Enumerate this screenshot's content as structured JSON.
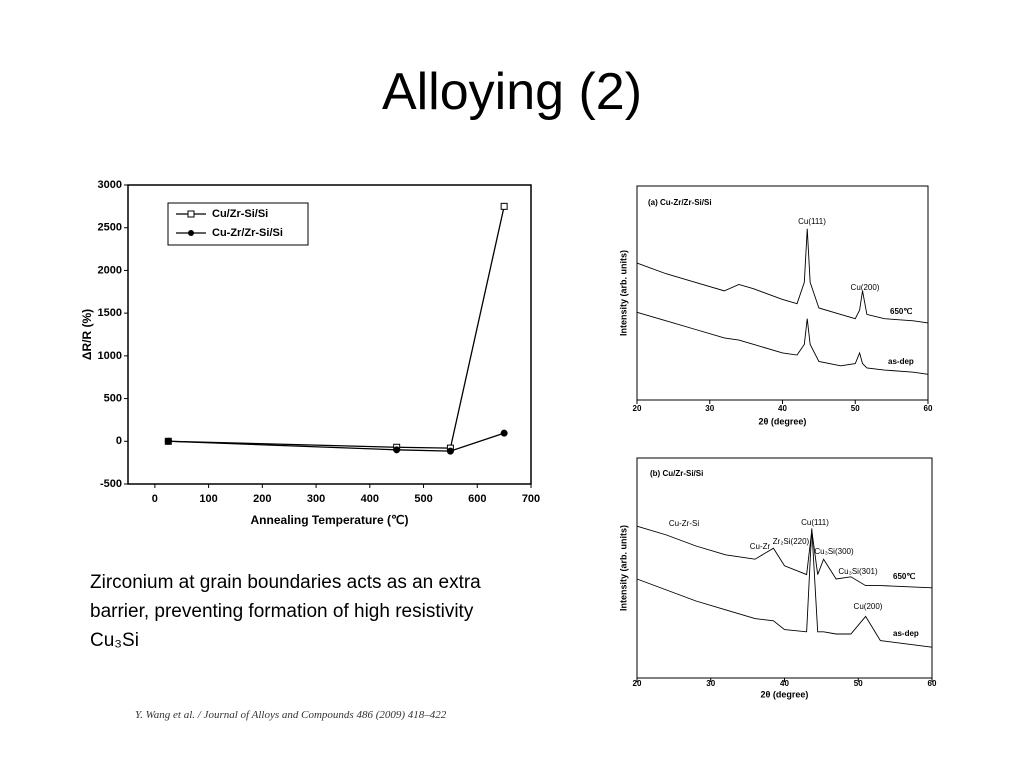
{
  "title": "Alloying (2)",
  "body_text": "Zirconium at grain boundaries acts as an extra barrier, preventing formation of high resistivity Cu₃Si",
  "citation": "Y. Wang et al. / Journal of Alloys and Compounds 486 (2009) 418–422",
  "chart_data": [
    {
      "type": "line",
      "xlabel": "Annealing Temperature (℃)",
      "ylabel": "ΔR/R (%)",
      "x": [
        25,
        450,
        550,
        650
      ],
      "series": [
        {
          "name": "Cu/Zr-Si/Si",
          "color": "#000000",
          "marker": "square-open",
          "values": [
            0,
            -70,
            -80,
            2750
          ]
        },
        {
          "name": "Cu-Zr/Zr-Si/Si",
          "color": "#000000",
          "marker": "circle",
          "values": [
            0,
            -100,
            -115,
            95
          ]
        }
      ],
      "xlim": [
        -50,
        700
      ],
      "xticks": [
        0,
        100,
        200,
        300,
        400,
        500,
        600,
        700
      ],
      "ylim": [
        -500,
        3000
      ],
      "yticks": [
        -500,
        0,
        500,
        1000,
        1500,
        2000,
        2500,
        3000
      ],
      "legend": "upper left"
    },
    {
      "type": "line",
      "title": "(a) Cu-Zr/Zr-Si/Si",
      "xlabel": "2θ (degree)",
      "ylabel": "Intensity (arb. units)",
      "x": [
        20,
        24,
        28,
        32,
        34,
        36,
        40,
        42,
        43,
        43.4,
        43.8,
        45,
        48,
        50,
        50.6,
        51,
        51.6,
        54,
        58,
        60
      ],
      "series": [
        {
          "name": "650℃",
          "color": "#000000",
          "values": [
            64,
            59,
            55,
            51,
            54,
            52,
            47,
            45,
            55,
            80,
            55,
            43,
            40,
            38,
            42,
            51,
            40,
            38,
            37,
            36
          ]
        },
        {
          "name": "as-dep",
          "color": "#000000",
          "values": [
            41,
            37,
            33,
            29,
            28,
            26,
            22,
            21,
            26,
            38,
            26,
            18,
            16,
            17,
            22,
            17,
            15,
            14,
            13,
            12
          ]
        }
      ],
      "xlim": [
        20,
        60
      ],
      "xticks": [
        20,
        30,
        40,
        50,
        60
      ],
      "ylim": [
        0,
        100
      ],
      "legend": "line-end",
      "annotations": [
        "Cu(111)",
        "Cu(200)"
      ]
    },
    {
      "type": "line",
      "title": "(b) Cu/Zr-Si/Si",
      "xlabel": "2θ (degree)",
      "ylabel": "Intensity (arb. units)",
      "x": [
        20,
        24,
        28,
        32,
        36,
        38.5,
        40,
        43,
        43.7,
        44.5,
        45.3,
        47,
        49,
        51,
        53,
        60
      ],
      "series": [
        {
          "name": "650℃",
          "color": "#000000",
          "values": [
            69,
            65,
            60,
            56,
            54,
            59,
            51,
            47,
            67,
            47,
            54,
            45,
            46,
            42,
            42,
            41
          ]
        },
        {
          "name": "as-dep",
          "color": "#000000",
          "values": [
            45,
            40,
            35,
            31,
            27,
            26,
            22,
            21,
            68,
            21,
            21,
            20,
            20,
            28,
            17,
            14
          ]
        }
      ],
      "xlim": [
        20,
        60
      ],
      "xticks": [
        20,
        30,
        40,
        50,
        60
      ],
      "ylim": [
        0,
        100
      ],
      "legend": "line-end",
      "annotations": [
        "Cu-Zr-Si",
        "Cu-Zr",
        "Zr₂Si(220)",
        "Cu(111)",
        "Cu₃Si(300)",
        "Cu₃Si(301)",
        "Cu(200)"
      ]
    }
  ]
}
